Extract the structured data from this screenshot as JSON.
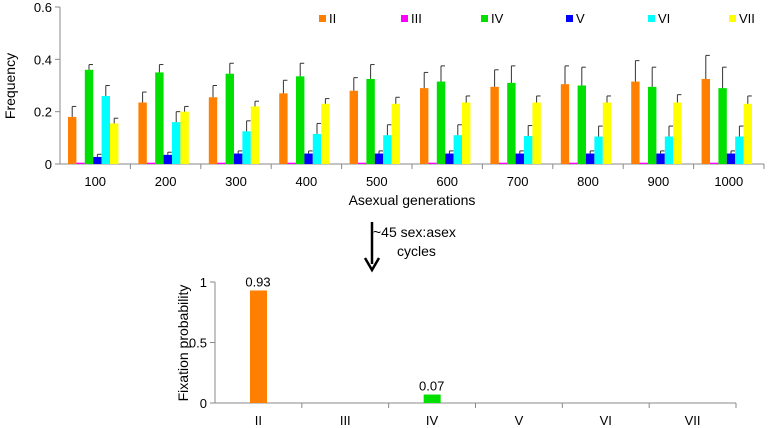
{
  "chart_data": [
    {
      "type": "bar",
      "ylabel": "Frequency",
      "xlabel": "Asexual generations",
      "ylim": [
        0,
        0.6
      ],
      "yticks": [
        "0",
        "0.2",
        "0.4",
        "0.6"
      ],
      "categories": [
        "100",
        "200",
        "300",
        "400",
        "500",
        "600",
        "700",
        "800",
        "900",
        "1000"
      ],
      "legend_position": "top-right",
      "series": [
        {
          "name": "II",
          "color": "#ff8000",
          "values": [
            0.18,
            0.235,
            0.255,
            0.27,
            0.28,
            0.29,
            0.295,
            0.305,
            0.315,
            0.325
          ],
          "errors": [
            0.04,
            0.04,
            0.045,
            0.05,
            0.05,
            0.06,
            0.065,
            0.07,
            0.08,
            0.09
          ]
        },
        {
          "name": "III",
          "color": "#ff00ff",
          "values": [
            0.005,
            0.005,
            0.005,
            0.005,
            0.005,
            0.005,
            0.005,
            0.005,
            0.005,
            0.005
          ],
          "errors": [
            0,
            0,
            0,
            0,
            0,
            0,
            0,
            0,
            0,
            0
          ]
        },
        {
          "name": "IV",
          "color": "#00e000",
          "values": [
            0.36,
            0.35,
            0.345,
            0.335,
            0.325,
            0.315,
            0.31,
            0.3,
            0.295,
            0.29
          ],
          "errors": [
            0.02,
            0.03,
            0.04,
            0.05,
            0.055,
            0.06,
            0.065,
            0.07,
            0.075,
            0.08
          ]
        },
        {
          "name": "V",
          "color": "#0000ff",
          "values": [
            0.027,
            0.035,
            0.04,
            0.04,
            0.04,
            0.04,
            0.04,
            0.04,
            0.04,
            0.04
          ],
          "errors": [
            0.01,
            0.01,
            0.01,
            0.01,
            0.01,
            0.01,
            0.01,
            0.01,
            0.01,
            0.01
          ]
        },
        {
          "name": "VI",
          "color": "#00ffff",
          "values": [
            0.26,
            0.16,
            0.125,
            0.115,
            0.11,
            0.11,
            0.107,
            0.105,
            0.105,
            0.105
          ],
          "errors": [
            0.04,
            0.04,
            0.04,
            0.04,
            0.04,
            0.04,
            0.04,
            0.04,
            0.04,
            0.04
          ]
        },
        {
          "name": "VII",
          "color": "#ffff00",
          "values": [
            0.155,
            0.2,
            0.22,
            0.23,
            0.23,
            0.235,
            0.235,
            0.235,
            0.235,
            0.23
          ],
          "errors": [
            0.02,
            0.02,
            0.02,
            0.02,
            0.025,
            0.025,
            0.025,
            0.025,
            0.03,
            0.03
          ]
        }
      ]
    },
    {
      "type": "bar",
      "ylabel": "Fixation probability",
      "ylim": [
        0,
        1
      ],
      "yticks": [
        "0",
        "0.5",
        "1"
      ],
      "categories": [
        "II",
        "III",
        "IV",
        "V",
        "VI",
        "VII"
      ],
      "values": [
        0.93,
        0,
        0.07,
        0,
        0,
        0
      ],
      "data_labels": [
        "0.93",
        "",
        "0.07",
        "",
        "",
        ""
      ],
      "colors": [
        "#ff8000",
        "#ff00ff",
        "#00e000",
        "#0000ff",
        "#00ffff",
        "#ffff00"
      ]
    }
  ],
  "annotation": {
    "line1": "~45 sex:asex",
    "line2": "cycles"
  }
}
